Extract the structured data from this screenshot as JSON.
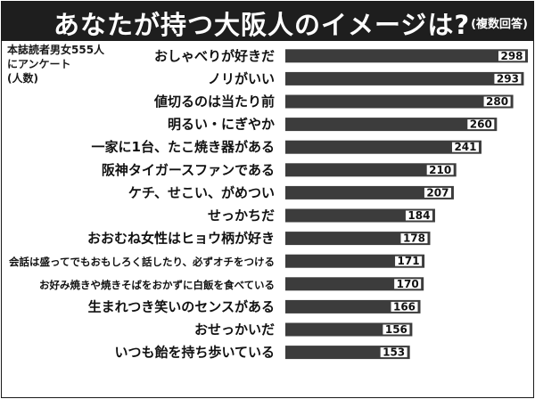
{
  "title": "あなたが持つ大阪人のイメージは?",
  "title_note": "(複数回答)",
  "source_note": [
    "本誌読者男女555人",
    "にアンケート",
    "(人数)"
  ],
  "colors": {
    "bar": "#3c3c3c",
    "value_box": "#ffffff",
    "title_bg": "#1e1e1e"
  },
  "chart_data": {
    "type": "bar",
    "orientation": "horizontal",
    "categories": [
      "おしゃべりが好きだ",
      "ノリがいい",
      "値切るのは当たり前",
      "明るい・にぎやか",
      "一家に1台、たこ焼き器がある",
      "阪神タイガースファンである",
      "ケチ、せこい、がめつい",
      "せっかちだ",
      "おおむね女性はヒョウ柄が好き",
      "会話は盛ってでもおもしろく話したり、必ずオチをつける",
      "お好み焼きや焼きそばをおかずに白飯を食べている",
      "生まれつき笑いのセンスがある",
      "おせっかいだ",
      "いつも飴を持ち歩いている"
    ],
    "values": [
      298,
      293,
      280,
      260,
      241,
      210,
      207,
      184,
      178,
      171,
      170,
      166,
      156,
      153
    ],
    "xlim": [
      0,
      298
    ],
    "grid": false,
    "legend": "none"
  }
}
